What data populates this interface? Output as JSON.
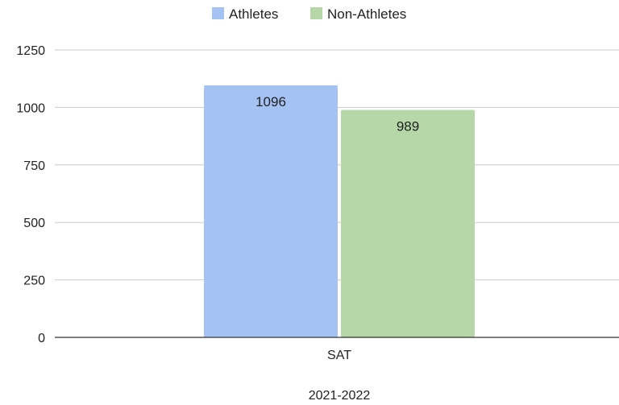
{
  "chart_data": {
    "type": "bar",
    "categories": [
      "SAT"
    ],
    "series": [
      {
        "name": "Athletes",
        "values": [
          1096
        ],
        "color": "#a4c2f4"
      },
      {
        "name": "Non-Athletes",
        "values": [
          989
        ],
        "color": "#b6d7a8"
      }
    ],
    "title": "",
    "xlabel": "2021-2022",
    "ylabel": "",
    "ylim": [
      0,
      1250
    ],
    "yticks": [
      0,
      250,
      500,
      750,
      1000,
      1250
    ],
    "grid": true,
    "legend_position": "top-center",
    "data_labels": true
  }
}
